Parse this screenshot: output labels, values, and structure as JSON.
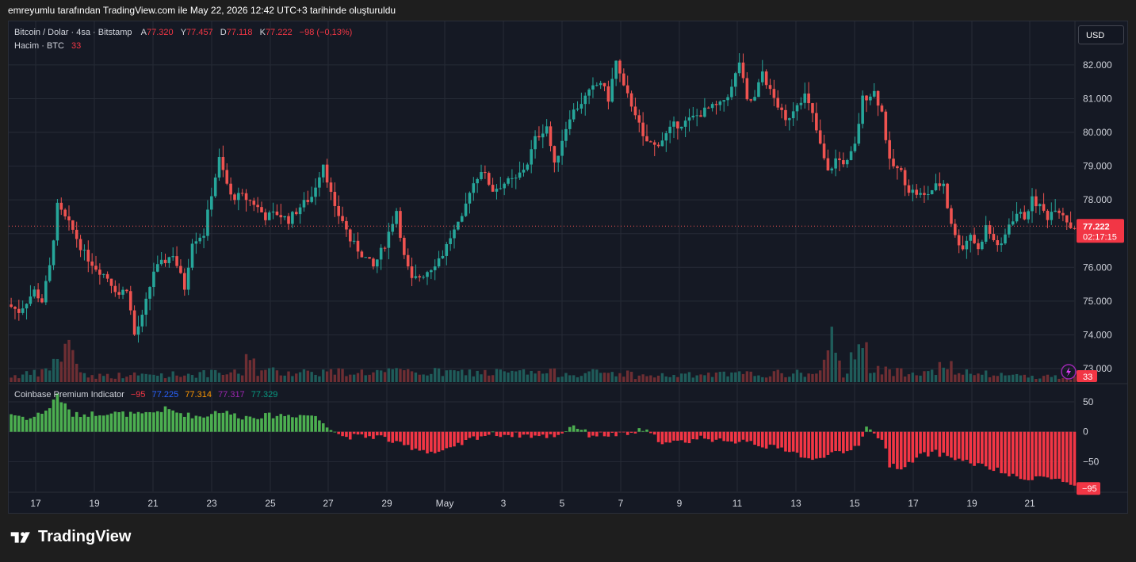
{
  "header": {
    "caption": "emreyumlu tarafından TradingView.com ile May 22, 2026 12:42 UTC+3 tarihinde oluşturuldu"
  },
  "legend": {
    "symbol": "Bitcoin / Dolar · 4sa · Bitstamp",
    "open_label": "A",
    "open_value": "77.320",
    "high_label": "Y",
    "high_value": "77.457",
    "low_label": "D",
    "low_value": "77.118",
    "close_label": "K",
    "close_value": "77.222",
    "change": "−98 (−0,13%)",
    "volume_label": "Hacim · BTC",
    "volume_value": "33"
  },
  "currency_button": "USD",
  "price_badge": {
    "value": "77.222",
    "countdown": "02:17:15"
  },
  "volume_badge": "33",
  "indicator": {
    "name": "Coinbase Premium Indicator",
    "values": [
      "−95",
      "77.225",
      "77.314",
      "77.317",
      "77.329"
    ],
    "colors": [
      "#f23645",
      "#2962ff",
      "#ff9800",
      "#9c27b0",
      "#089981"
    ],
    "badge": "−95"
  },
  "brand": {
    "name": "TradingView"
  },
  "colors": {
    "up": "#26a69a",
    "down": "#ef5350",
    "premium_pos": "#4caf50",
    "premium_neg": "#f23645",
    "background": "#151924",
    "grid": "#262b36"
  },
  "chart_data": {
    "type": "candlestick",
    "price_axis": {
      "ticks": [
        "82.000",
        "81.000",
        "80.000",
        "79.000",
        "78.000",
        "77.000",
        "76.000",
        "75.000",
        "74.000",
        "73.000"
      ],
      "range": [
        72.6,
        82.75
      ]
    },
    "time_axis": {
      "ticks": [
        "17",
        "19",
        "21",
        "23",
        "25",
        "27",
        "29",
        "May",
        "3",
        "5",
        "7",
        "9",
        "11",
        "13",
        "15",
        "17",
        "19",
        "21"
      ]
    },
    "indicator_axis": {
      "ticks": [
        "50",
        "0",
        "−50"
      ],
      "range": [
        -100,
        70
      ]
    },
    "anchors": [
      [
        0,
        74.9
      ],
      [
        3,
        74.7
      ],
      [
        7,
        75.3
      ],
      [
        9,
        75.0
      ],
      [
        11,
        76.0
      ],
      [
        13,
        77.8
      ],
      [
        17,
        77.1
      ],
      [
        20,
        76.4
      ],
      [
        23,
        76.0
      ],
      [
        26,
        75.7
      ],
      [
        29,
        75.2
      ],
      [
        31,
        75.4
      ],
      [
        33,
        74.0
      ],
      [
        35,
        74.5
      ],
      [
        38,
        75.9
      ],
      [
        40,
        76.1
      ],
      [
        43,
        76.4
      ],
      [
        46,
        75.4
      ],
      [
        48,
        76.8
      ],
      [
        51,
        77.0
      ],
      [
        53,
        78.2
      ],
      [
        55,
        79.2
      ],
      [
        58,
        78.1
      ],
      [
        61,
        78.1
      ],
      [
        64,
        77.9
      ],
      [
        67,
        77.5
      ],
      [
        70,
        77.6
      ],
      [
        73,
        77.4
      ],
      [
        76,
        77.8
      ],
      [
        79,
        78.1
      ],
      [
        82,
        79.1
      ],
      [
        85,
        77.7
      ],
      [
        87,
        77.4
      ],
      [
        89,
        76.8
      ],
      [
        92,
        76.4
      ],
      [
        95,
        76.0
      ],
      [
        98,
        76.7
      ],
      [
        101,
        77.7
      ],
      [
        103,
        76.3
      ],
      [
        105,
        75.6
      ],
      [
        108,
        75.8
      ],
      [
        110,
        76.0
      ],
      [
        113,
        76.4
      ],
      [
        115,
        76.9
      ],
      [
        118,
        77.4
      ],
      [
        120,
        78.3
      ],
      [
        123,
        78.9
      ],
      [
        126,
        78.3
      ],
      [
        129,
        78.5
      ],
      [
        132,
        78.6
      ],
      [
        135,
        79.1
      ],
      [
        137,
        79.8
      ],
      [
        140,
        80.2
      ],
      [
        142,
        79.0
      ],
      [
        144,
        79.8
      ],
      [
        146,
        80.5
      ],
      [
        149,
        80.9
      ],
      [
        152,
        81.3
      ],
      [
        154,
        81.5
      ],
      [
        156,
        81.0
      ],
      [
        158,
        82.1
      ],
      [
        160,
        81.3
      ],
      [
        163,
        80.6
      ],
      [
        165,
        79.8
      ],
      [
        168,
        79.6
      ],
      [
        170,
        79.8
      ],
      [
        173,
        80.2
      ],
      [
        176,
        80.3
      ],
      [
        179,
        80.5
      ],
      [
        182,
        80.7
      ],
      [
        185,
        80.8
      ],
      [
        188,
        81.3
      ],
      [
        190,
        82.1
      ],
      [
        192,
        80.9
      ],
      [
        194,
        81.0
      ],
      [
        196,
        81.8
      ],
      [
        198,
        81.2
      ],
      [
        200,
        80.8
      ],
      [
        202,
        80.3
      ],
      [
        205,
        80.9
      ],
      [
        207,
        81.1
      ],
      [
        209,
        80.5
      ],
      [
        211,
        79.6
      ],
      [
        213,
        78.8
      ],
      [
        215,
        79.2
      ],
      [
        218,
        79.1
      ],
      [
        220,
        79.6
      ],
      [
        222,
        81.0
      ],
      [
        225,
        81.2
      ],
      [
        227,
        80.6
      ],
      [
        229,
        79.1
      ],
      [
        232,
        78.8
      ],
      [
        234,
        78.3
      ],
      [
        236,
        78.2
      ],
      [
        238,
        78.1
      ],
      [
        241,
        78.4
      ],
      [
        243,
        78.5
      ],
      [
        244,
        77.8
      ],
      [
        246,
        76.9
      ],
      [
        248,
        76.6
      ],
      [
        250,
        77.0
      ],
      [
        252,
        76.5
      ],
      [
        254,
        77.2
      ],
      [
        256,
        76.8
      ],
      [
        258,
        76.6
      ],
      [
        260,
        77.3
      ],
      [
        262,
        77.6
      ],
      [
        264,
        77.5
      ],
      [
        266,
        78.0
      ],
      [
        268,
        77.8
      ],
      [
        270,
        77.5
      ],
      [
        272,
        77.8
      ],
      [
        274,
        77.6
      ],
      [
        276,
        77.2
      ]
    ],
    "volume_profile": [
      [
        0,
        8
      ],
      [
        8,
        12
      ],
      [
        16,
        50
      ],
      [
        18,
        14
      ],
      [
        20,
        8
      ],
      [
        60,
        12
      ],
      [
        62,
        45
      ],
      [
        64,
        14
      ],
      [
        160,
        12
      ],
      [
        162,
        8
      ],
      [
        210,
        12
      ],
      [
        213,
        50
      ],
      [
        216,
        10
      ],
      [
        219,
        40
      ],
      [
        221,
        90
      ],
      [
        223,
        15
      ],
      [
        230,
        14
      ],
      [
        244,
        20
      ],
      [
        245,
        12
      ],
      [
        276,
        6
      ]
    ],
    "premium_profile": [
      [
        0,
        30
      ],
      [
        5,
        22
      ],
      [
        10,
        40
      ],
      [
        12,
        65
      ],
      [
        13,
        52
      ],
      [
        16,
        28
      ],
      [
        25,
        32
      ],
      [
        34,
        28
      ],
      [
        40,
        38
      ],
      [
        46,
        28
      ],
      [
        50,
        25
      ],
      [
        52,
        32
      ],
      [
        54,
        35
      ],
      [
        60,
        25
      ],
      [
        70,
        28
      ],
      [
        78,
        28
      ],
      [
        80,
        20
      ],
      [
        82,
        12
      ],
      [
        86,
        -8
      ],
      [
        96,
        -8
      ],
      [
        100,
        -20
      ],
      [
        110,
        -35
      ],
      [
        114,
        -30
      ],
      [
        120,
        -10
      ],
      [
        124,
        -4
      ],
      [
        132,
        -5
      ],
      [
        138,
        -8
      ],
      [
        142,
        -5
      ],
      [
        144,
        3
      ],
      [
        146,
        12
      ],
      [
        150,
        -5
      ],
      [
        160,
        -5
      ],
      [
        164,
        4
      ],
      [
        166,
        -5
      ],
      [
        170,
        -20
      ],
      [
        176,
        -15
      ],
      [
        180,
        -8
      ],
      [
        186,
        -20
      ],
      [
        190,
        -12
      ],
      [
        196,
        -25
      ],
      [
        202,
        -30
      ],
      [
        208,
        -50
      ],
      [
        212,
        -35
      ],
      [
        216,
        -38
      ],
      [
        220,
        -20
      ],
      [
        222,
        10
      ],
      [
        224,
        -5
      ],
      [
        226,
        -10
      ],
      [
        228,
        -55
      ],
      [
        232,
        -60
      ],
      [
        236,
        -40
      ],
      [
        240,
        -35
      ],
      [
        248,
        -50
      ],
      [
        256,
        -65
      ],
      [
        262,
        -80
      ],
      [
        266,
        -75
      ],
      [
        272,
        -80
      ],
      [
        276,
        -95
      ]
    ],
    "volume_range": [
      0,
      110
    ],
    "pane_volume_range": "left"
  }
}
